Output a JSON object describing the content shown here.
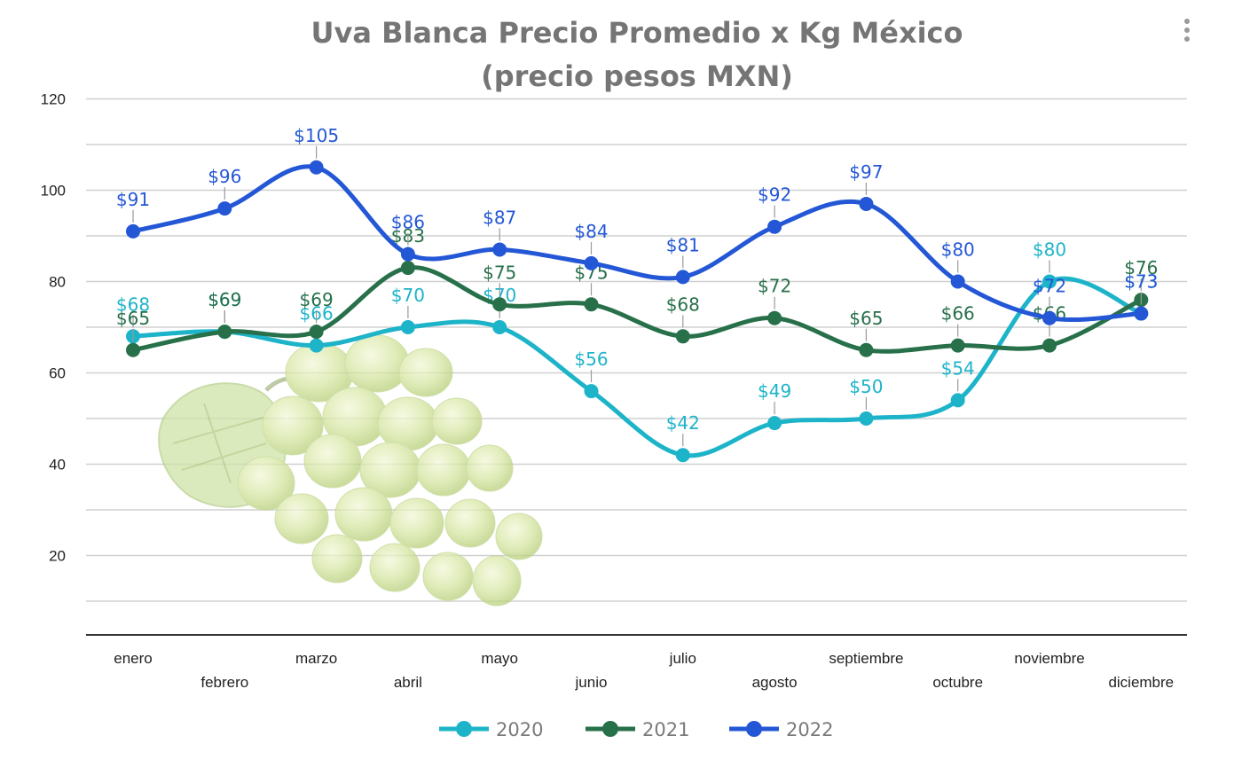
{
  "menu": {
    "icon": "more-vertical-icon"
  },
  "colors": {
    "s2020": "#1db4c9",
    "s2021": "#27704a",
    "s2022": "#2457d6"
  },
  "chart_data": {
    "type": "line",
    "title": "Uva Blanca Precio Promedio x Kg México",
    "subtitle": "(precio pesos MXN)",
    "categories": [
      "enero",
      "febrero",
      "marzo",
      "abril",
      "mayo",
      "junio",
      "julio",
      "agosto",
      "septiembre",
      "octubre",
      "noviembre",
      "diciembre"
    ],
    "y_ticks": [
      "120",
      "100",
      "80",
      "60",
      "40",
      "20"
    ],
    "ylim": [
      0,
      120
    ],
    "grid": true,
    "legend_position": "bottom",
    "series": [
      {
        "name": "2020",
        "color": "#1db4c9",
        "values": [
          68,
          69,
          66,
          70,
          70,
          56,
          42,
          49,
          50,
          54,
          80,
          73
        ],
        "labels": [
          "$68",
          "$69",
          "$66",
          "$70",
          "$70",
          "$56",
          "$42",
          "$49",
          "$50",
          "$54",
          "$80",
          "$73"
        ]
      },
      {
        "name": "2021",
        "color": "#27704a",
        "values": [
          65,
          69,
          69,
          83,
          75,
          75,
          68,
          72,
          65,
          66,
          66,
          76
        ],
        "labels": [
          "$65",
          "$69",
          "$69",
          "$83",
          "$75",
          "$75",
          "$68",
          "$72",
          "$65",
          "$66",
          "$66",
          "$76"
        ]
      },
      {
        "name": "2022",
        "color": "#2457d6",
        "values": [
          91,
          96,
          105,
          86,
          87,
          84,
          81,
          92,
          97,
          80,
          72,
          73
        ],
        "labels": [
          "$91",
          "$96",
          "$105",
          "$86",
          "$87",
          "$84",
          "$81",
          "$92",
          "$97",
          "$80",
          "$72",
          "$73"
        ]
      }
    ]
  }
}
